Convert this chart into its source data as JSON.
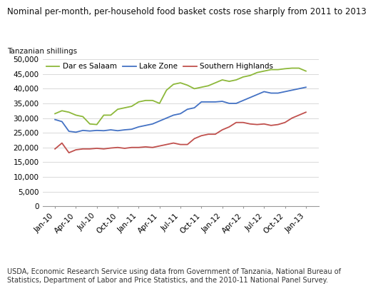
{
  "title": "Nominal per-month, per-household food basket costs rose sharply from 2011 to 2013",
  "ylabel": "Tanzanian shillings",
  "footnote": "USDA, Economic Research Service using data from Government of Tanzania, National Bureau of\nStatistics, Department of Labor and Price Statistics, and the 2010-11 National Panel Survey.",
  "x_labels": [
    "Jan-10",
    "Apr-10",
    "Jul-10",
    "Oct-10",
    "Jan-11",
    "Apr-11",
    "Jul-11",
    "Oct-11",
    "Jan-12",
    "Apr-12",
    "Jul-12",
    "Oct-12",
    "Jan-13"
  ],
  "ylim": [
    0,
    50000
  ],
  "yticks": [
    0,
    5000,
    10000,
    15000,
    20000,
    25000,
    30000,
    35000,
    40000,
    45000,
    50000
  ],
  "series": {
    "Dar es Salaam": {
      "color": "#8db83a",
      "values": [
        31500,
        32500,
        32000,
        31000,
        30500,
        28000,
        27800,
        31000,
        31000,
        33000,
        33500,
        34000,
        35500,
        36000,
        36000,
        35000,
        39500,
        41500,
        42000,
        41200,
        40000,
        40500,
        41000,
        42000,
        43000,
        42500,
        43000,
        44000,
        44500,
        45500,
        46000,
        46500,
        46500,
        46800,
        47000,
        47000,
        46000
      ]
    },
    "Lake Zone": {
      "color": "#4472c4",
      "values": [
        29500,
        28800,
        25500,
        25200,
        25800,
        25600,
        25800,
        25700,
        26000,
        25700,
        26000,
        26200,
        27000,
        27500,
        28000,
        29000,
        30000,
        31000,
        31500,
        33000,
        33500,
        35500,
        35500,
        35500,
        35700,
        35000,
        35000,
        36000,
        37000,
        38000,
        39000,
        38500,
        38500,
        39000,
        39500,
        40000,
        40500
      ]
    },
    "Southern Highlands": {
      "color": "#c0504d",
      "values": [
        19500,
        21500,
        18200,
        19200,
        19500,
        19500,
        19700,
        19500,
        19800,
        20000,
        19700,
        20000,
        20000,
        20200,
        20000,
        20500,
        21000,
        21500,
        21000,
        21000,
        23000,
        24000,
        24500,
        24500,
        26000,
        27000,
        28500,
        28500,
        28000,
        27800,
        28000,
        27500,
        27800,
        28500,
        30000,
        31000,
        32000
      ]
    }
  },
  "background_color": "#ffffff",
  "grid_color": "#d9d9d9",
  "title_fontsize": 8.5,
  "tick_fontsize": 7.5,
  "footnote_fontsize": 7.0
}
